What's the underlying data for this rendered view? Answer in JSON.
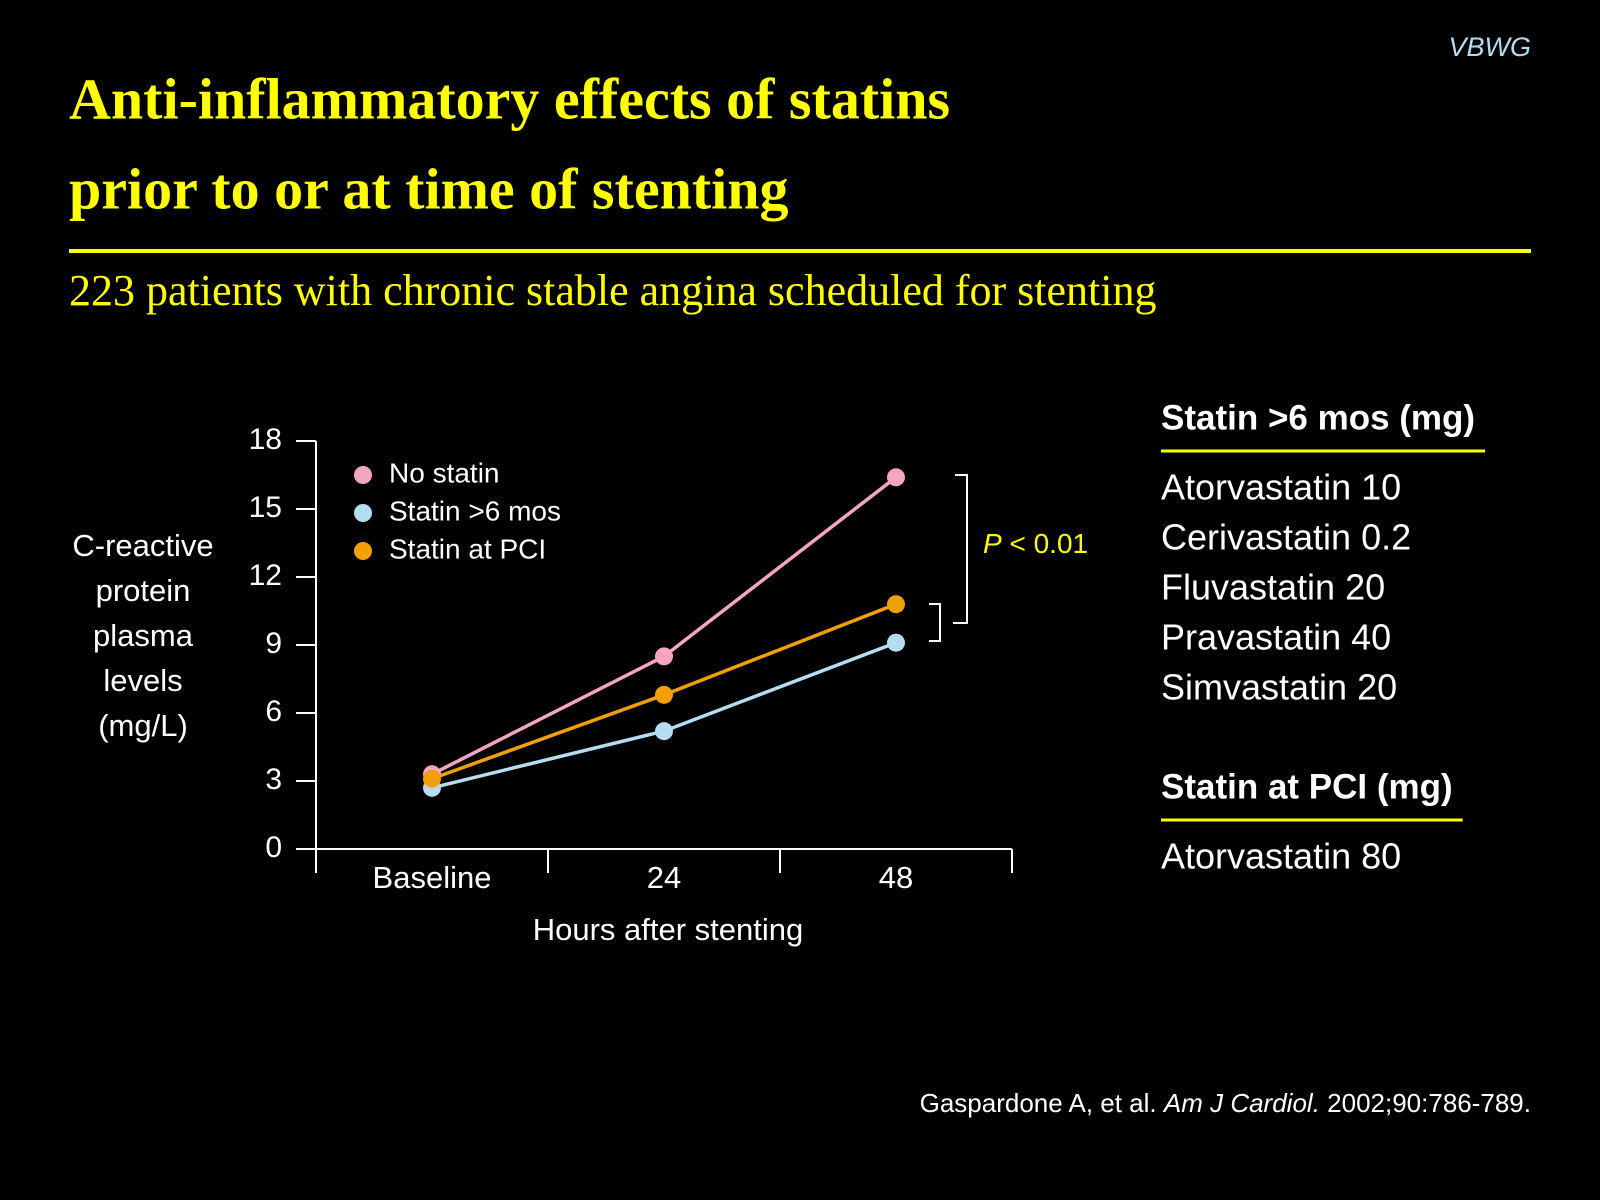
{
  "slide": {
    "brand": "VBWG",
    "title_lines": [
      "Anti-inflammatory effects of statins",
      "prior to or at time of stenting"
    ],
    "subtitle": "223 patients with chronic stable angina scheduled for stenting",
    "panels": [
      {
        "heading": "Statin >6 mos (mg)",
        "items": [
          "Atorvastatin 10",
          "Cerivastatin 0.2",
          "Fluvastatin 20",
          "Pravastatin 40",
          "Simvastatin 20"
        ]
      },
      {
        "heading": "Statin at PCI (mg)",
        "items": [
          "Atorvastatin 80"
        ]
      }
    ],
    "citation": [
      "Gaspardone A, et al. ",
      "Am J Cardiol.",
      " 2002;90:786-789."
    ]
  },
  "chart_data": {
    "type": "line",
    "ylabel": [
      "C-reactive",
      "protein",
      "plasma",
      "levels",
      "(mg/L)"
    ],
    "xlabel": "Hours after stenting",
    "categories": [
      "Baseline",
      "24",
      "48"
    ],
    "ylim": [
      0,
      18
    ],
    "yticks": [
      0,
      3,
      6,
      9,
      12,
      15,
      18
    ],
    "series": [
      {
        "name": "No statin",
        "color": "#f4a6bf",
        "values": [
          3.3,
          8.5,
          16.4
        ]
      },
      {
        "name": "Statin >6 mos",
        "color": "#b6dcf2",
        "values": [
          2.7,
          5.2,
          9.1
        ]
      },
      {
        "name": "Statin at PCI",
        "color": "#f0a000",
        "values": [
          3.1,
          6.8,
          10.8
        ]
      }
    ],
    "annotation": [
      "P",
      " < 0.01"
    ]
  }
}
